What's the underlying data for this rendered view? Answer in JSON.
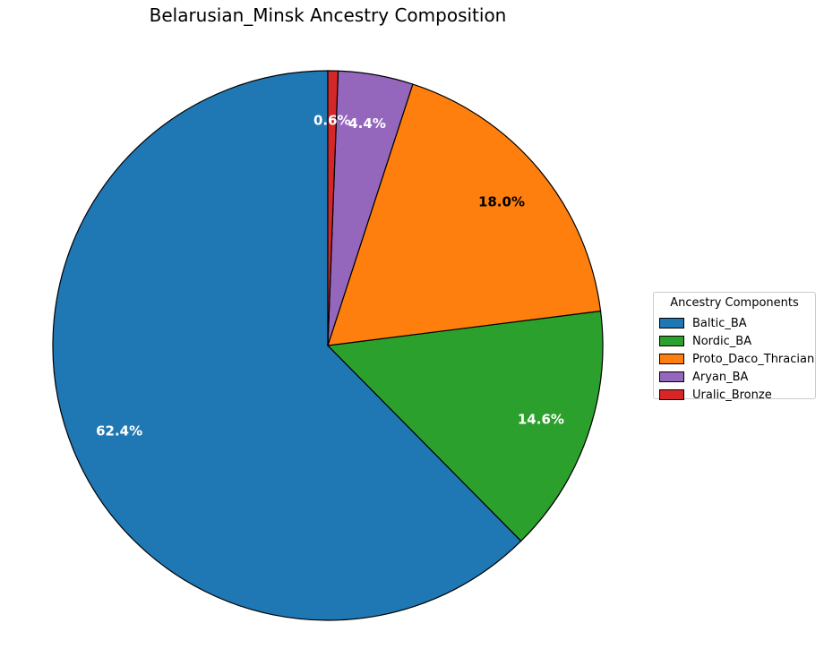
{
  "chart_data": {
    "type": "pie",
    "title": "Belarusian_Minsk Ancestry Composition",
    "legend_title": "Ancestry Components",
    "legend_position": "right",
    "start_angle_deg": 90,
    "direction": "counterclockwise",
    "slices": [
      {
        "label": "Baltic_BA",
        "value": 62.4,
        "pct_label": "62.4%",
        "color": "#1f77b4",
        "text_color": "#ffffff"
      },
      {
        "label": "Nordic_BA",
        "value": 14.6,
        "pct_label": "14.6%",
        "color": "#2ca02c",
        "text_color": "#ffffff"
      },
      {
        "label": "Proto_Daco_Thracian",
        "value": 18.0,
        "pct_label": "18.0%",
        "color": "#ff7f0e",
        "text_color": "#000000"
      },
      {
        "label": "Aryan_BA",
        "value": 4.4,
        "pct_label": "4.4%",
        "color": "#9467bd",
        "text_color": "#ffffff"
      },
      {
        "label": "Uralic_Bronze",
        "value": 0.6,
        "pct_label": "0.6%",
        "color": "#d62728",
        "text_color": "#ffffff"
      }
    ]
  }
}
